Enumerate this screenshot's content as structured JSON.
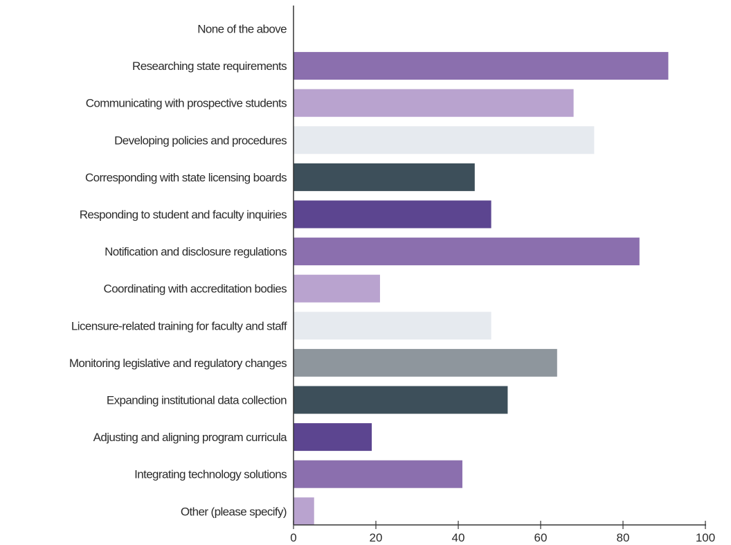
{
  "chart_data": {
    "type": "bar",
    "orientation": "horizontal",
    "categories": [
      "None of the above",
      "Researching state requirements",
      "Communicating with prospective students",
      "Developing policies and procedures",
      "Corresponding with state licensing boards",
      "Responding to student and faculty inquiries",
      "Notification and disclosure regulations",
      "Coordinating with accreditation bodies",
      "Licensure-related training for faculty and staff",
      "Monitoring legislative and regulatory changes",
      "Expanding institutional data collection",
      "Adjusting and aligning program curricula",
      "Integrating technology solutions",
      "Other (please specify)"
    ],
    "values": [
      0,
      91,
      68,
      73,
      44,
      48,
      84,
      21,
      48,
      64,
      52,
      19,
      41,
      5
    ],
    "colors": [
      "#8b6fae",
      "#8b6fae",
      "#b9a3cf",
      "#e6eaef",
      "#3d4f5a",
      "#5c4590",
      "#8b6fae",
      "#b9a3cf",
      "#e6eaef",
      "#8e969d",
      "#3d4f5a",
      "#5c4590",
      "#8b6fae",
      "#b9a3cf"
    ],
    "xlim": [
      0,
      100
    ],
    "xticks": [
      "0",
      "20",
      "40",
      "60",
      "80",
      "100"
    ],
    "title": "",
    "xlabel": "",
    "ylabel": "",
    "grid": false,
    "legend": "none"
  }
}
